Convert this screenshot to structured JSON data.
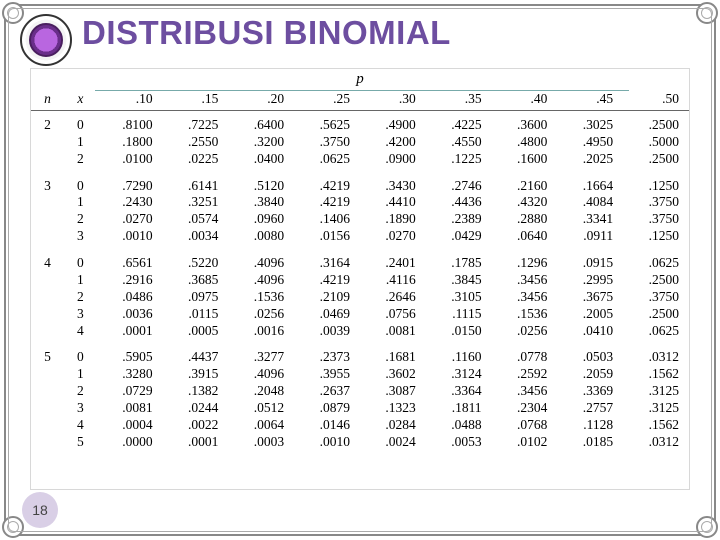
{
  "slide": {
    "title": "DISTRIBUSI BINOMIAL",
    "number": "18",
    "title_color": "#6d4ea0"
  },
  "table": {
    "p_label": "p",
    "n_label": "n",
    "x_label": "x",
    "p_values": [
      ".10",
      ".15",
      ".20",
      ".25",
      ".30",
      ".35",
      ".40",
      ".45",
      ".50"
    ],
    "groups": [
      {
        "n": "2",
        "rows": [
          {
            "x": "0",
            "v": [
              ".8100",
              ".7225",
              ".6400",
              ".5625",
              ".4900",
              ".4225",
              ".3600",
              ".3025",
              ".2500"
            ]
          },
          {
            "x": "1",
            "v": [
              ".1800",
              ".2550",
              ".3200",
              ".3750",
              ".4200",
              ".4550",
              ".4800",
              ".4950",
              ".5000"
            ]
          },
          {
            "x": "2",
            "v": [
              ".0100",
              ".0225",
              ".0400",
              ".0625",
              ".0900",
              ".1225",
              ".1600",
              ".2025",
              ".2500"
            ]
          }
        ]
      },
      {
        "n": "3",
        "rows": [
          {
            "x": "0",
            "v": [
              ".7290",
              ".6141",
              ".5120",
              ".4219",
              ".3430",
              ".2746",
              ".2160",
              ".1664",
              ".1250"
            ]
          },
          {
            "x": "1",
            "v": [
              ".2430",
              ".3251",
              ".3840",
              ".4219",
              ".4410",
              ".4436",
              ".4320",
              ".4084",
              ".3750"
            ]
          },
          {
            "x": "2",
            "v": [
              ".0270",
              ".0574",
              ".0960",
              ".1406",
              ".1890",
              ".2389",
              ".2880",
              ".3341",
              ".3750"
            ]
          },
          {
            "x": "3",
            "v": [
              ".0010",
              ".0034",
              ".0080",
              ".0156",
              ".0270",
              ".0429",
              ".0640",
              ".0911",
              ".1250"
            ]
          }
        ]
      },
      {
        "n": "4",
        "rows": [
          {
            "x": "0",
            "v": [
              ".6561",
              ".5220",
              ".4096",
              ".3164",
              ".2401",
              ".1785",
              ".1296",
              ".0915",
              ".0625"
            ]
          },
          {
            "x": "1",
            "v": [
              ".2916",
              ".3685",
              ".4096",
              ".4219",
              ".4116",
              ".3845",
              ".3456",
              ".2995",
              ".2500"
            ]
          },
          {
            "x": "2",
            "v": [
              ".0486",
              ".0975",
              ".1536",
              ".2109",
              ".2646",
              ".3105",
              ".3456",
              ".3675",
              ".3750"
            ]
          },
          {
            "x": "3",
            "v": [
              ".0036",
              ".0115",
              ".0256",
              ".0469",
              ".0756",
              ".1115",
              ".1536",
              ".2005",
              ".2500"
            ]
          },
          {
            "x": "4",
            "v": [
              ".0001",
              ".0005",
              ".0016",
              ".0039",
              ".0081",
              ".0150",
              ".0256",
              ".0410",
              ".0625"
            ]
          }
        ]
      },
      {
        "n": "5",
        "rows": [
          {
            "x": "0",
            "v": [
              ".5905",
              ".4437",
              ".3277",
              ".2373",
              ".1681",
              ".1160",
              ".0778",
              ".0503",
              ".0312"
            ]
          },
          {
            "x": "1",
            "v": [
              ".3280",
              ".3915",
              ".4096",
              ".3955",
              ".3602",
              ".3124",
              ".2592",
              ".2059",
              ".1562"
            ]
          },
          {
            "x": "2",
            "v": [
              ".0729",
              ".1382",
              ".2048",
              ".2637",
              ".3087",
              ".3364",
              ".3456",
              ".3369",
              ".3125"
            ]
          },
          {
            "x": "3",
            "v": [
              ".0081",
              ".0244",
              ".0512",
              ".0879",
              ".1323",
              ".1811",
              ".2304",
              ".2757",
              ".3125"
            ]
          },
          {
            "x": "4",
            "v": [
              ".0004",
              ".0022",
              ".0064",
              ".0146",
              ".0284",
              ".0488",
              ".0768",
              ".1128",
              ".1562"
            ]
          },
          {
            "x": "5",
            "v": [
              ".0000",
              ".0001",
              ".0003",
              ".0010",
              ".0024",
              ".0053",
              ".0102",
              ".0185",
              ".0312"
            ]
          }
        ]
      }
    ]
  }
}
